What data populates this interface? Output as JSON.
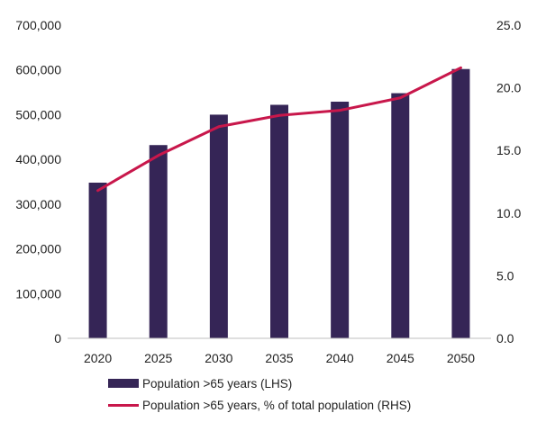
{
  "chart_data": {
    "type": "bar",
    "categories": [
      "2020",
      "2025",
      "2030",
      "2035",
      "2040",
      "2045",
      "2050"
    ],
    "series": [
      {
        "name": "Population >65 years (LHS)",
        "type": "bar",
        "axis": "left",
        "color": "#352556",
        "values": [
          348000,
          432000,
          500000,
          522000,
          529000,
          548000,
          602000
        ]
      },
      {
        "name": "Population >65 years, % of total population (RHS)",
        "type": "line",
        "axis": "right",
        "color": "#c8174b",
        "values": [
          11.8,
          14.6,
          16.9,
          17.8,
          18.2,
          19.2,
          21.6
        ]
      }
    ],
    "y_left": {
      "ylim": [
        0,
        700000
      ],
      "ticks": [
        "0",
        "100,000",
        "200,000",
        "300,000",
        "400,000",
        "500,000",
        "600,000",
        "700,000"
      ]
    },
    "y_right": {
      "ylim": [
        0,
        25
      ],
      "ticks": [
        "0.0",
        "5.0",
        "10.0",
        "15.0",
        "20.0",
        "25.0"
      ]
    },
    "grid": false,
    "legend": "bottom"
  }
}
